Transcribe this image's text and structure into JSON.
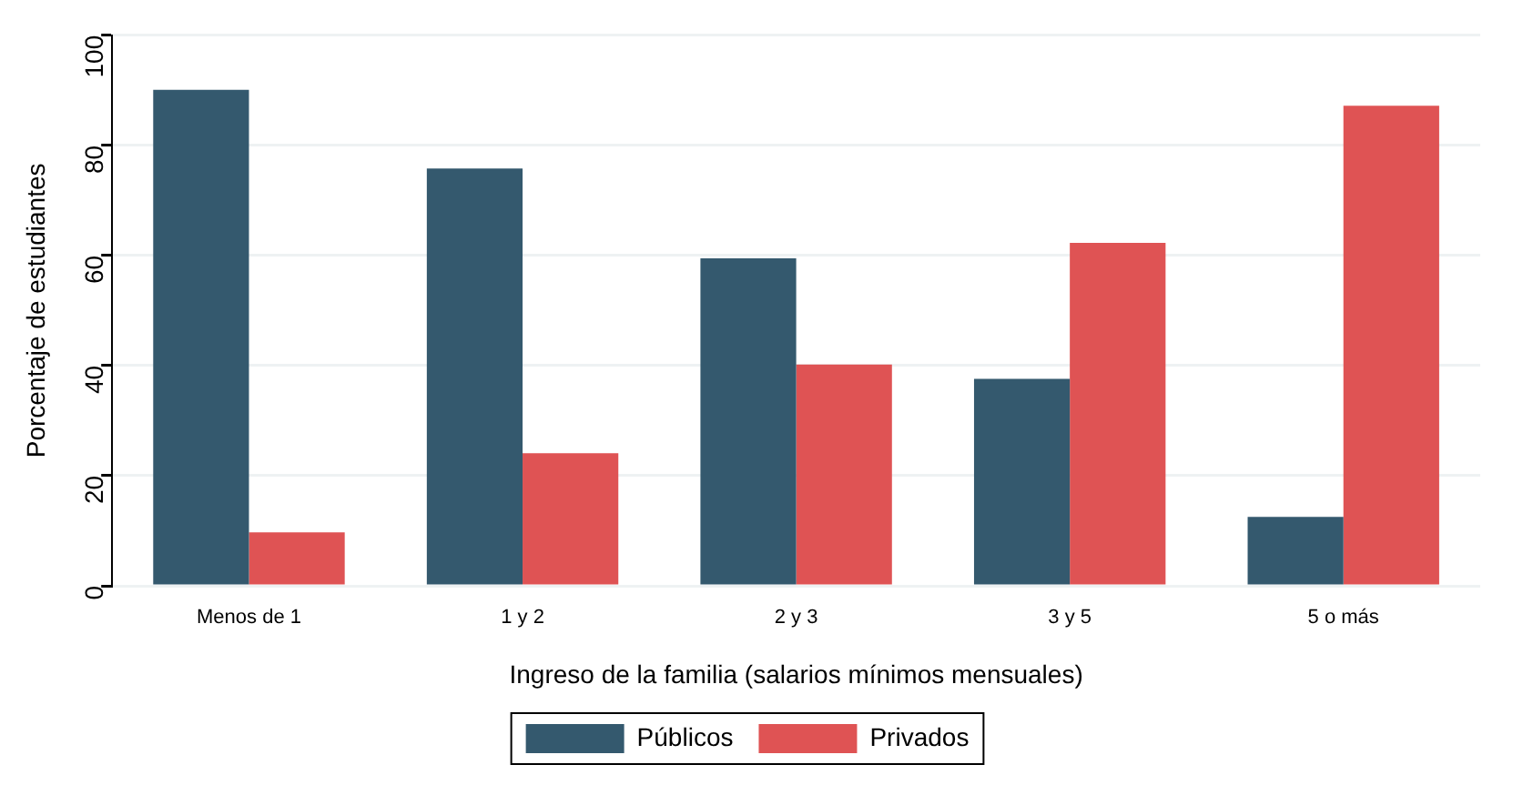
{
  "chart_data": {
    "type": "bar",
    "xlabel": "Ingreso de la familia (salarios mínimos mensuales)",
    "ylabel": "Porcentaje de estudiantes",
    "categories": [
      "Menos de 1",
      "1 y 2",
      "2 y 3",
      "3 y 5",
      "5 o más"
    ],
    "series": [
      {
        "name": "Públicos",
        "color": "#34596e",
        "values": [
          90.1,
          75.8,
          59.5,
          37.6,
          12.5
        ]
      },
      {
        "name": "Privados",
        "color": "#df5354",
        "values": [
          9.7,
          24.1,
          40.2,
          62.3,
          87.2
        ]
      }
    ],
    "ylim": [
      0,
      100
    ],
    "yticks": [
      0,
      20,
      40,
      60,
      80,
      100
    ],
    "grid": "y",
    "legend": "bottom"
  }
}
